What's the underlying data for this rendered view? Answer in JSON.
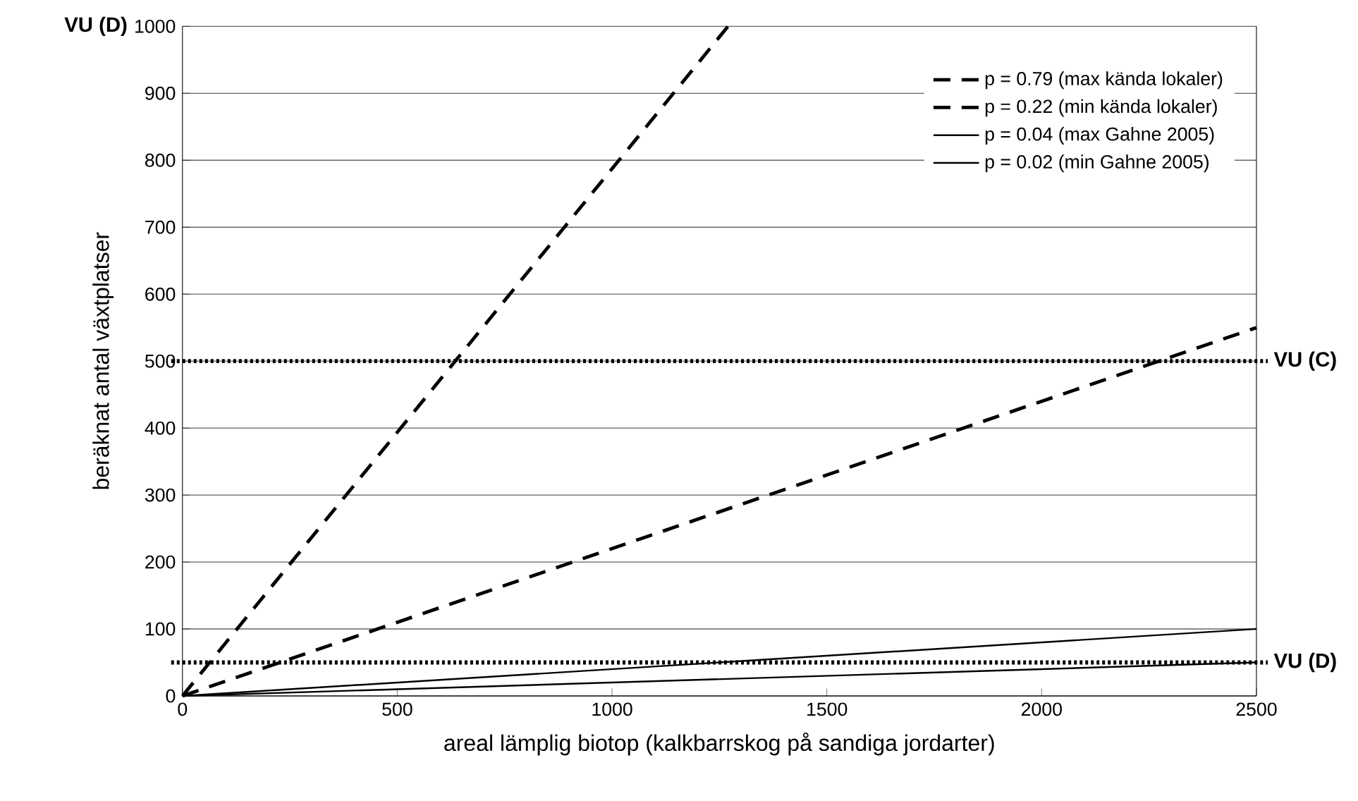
{
  "chart_data": {
    "type": "line",
    "xlabel": "areal lämplig biotop (kalkbarrskog på sandiga jordarter)",
    "ylabel": "beräknat antal växtplatser",
    "series": [
      {
        "name": "p = 0.79 (max kända lokaler)",
        "color": "#000000",
        "line_style": "dashed",
        "x": [
          0,
          1270
        ],
        "values": [
          0,
          1000
        ]
      },
      {
        "name": "p = 0.22 (min kända lokaler)",
        "color": "#000000",
        "line_style": "dashed",
        "x": [
          0,
          2500
        ],
        "values": [
          0,
          550
        ]
      },
      {
        "name": "p = 0.04 (max Gahne 2005)",
        "color": "#000000",
        "line_style": "solid",
        "x": [
          0,
          2500
        ],
        "values": [
          0,
          100
        ]
      },
      {
        "name": "p = 0.02 (min Gahne 2005)",
        "color": "#000000",
        "line_style": "solid",
        "x": [
          0,
          2500
        ],
        "values": [
          0,
          50
        ]
      }
    ],
    "xlim": [
      0,
      2500
    ],
    "ylim": [
      0,
      1000
    ],
    "xticks": [
      0,
      500,
      1000,
      1500,
      2000,
      2500
    ],
    "yticks": [
      0,
      100,
      200,
      300,
      400,
      500,
      600,
      700,
      800,
      900,
      1000
    ],
    "ref_lines": [
      {
        "axis": "y",
        "value": 500,
        "label": "VU (C)",
        "color": "#000000",
        "line_style": "dotted"
      },
      {
        "axis": "y",
        "value": 50,
        "label": "VU (D)",
        "color": "#000000",
        "line_style": "dotted"
      }
    ],
    "annotations": [
      "VU (D)"
    ],
    "grid": "y",
    "legend": "top right",
    "marker": "none"
  }
}
